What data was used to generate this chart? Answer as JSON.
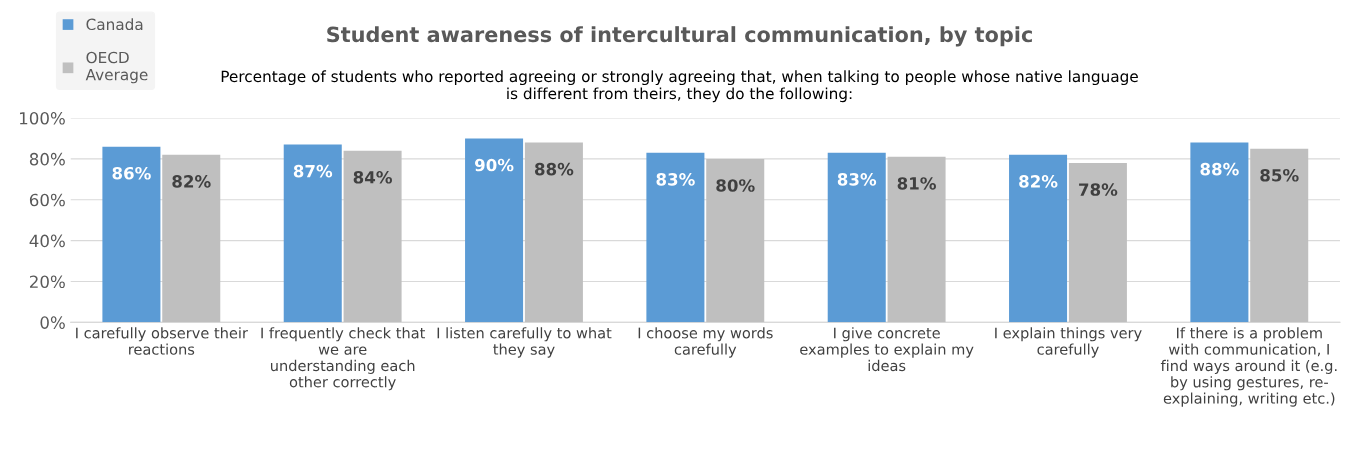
{
  "chart_data": {
    "type": "bar",
    "title": "Student awareness of intercultural communication, by topic",
    "subtitle": "Percentage of students who reported agreeing or strongly agreeing that, when talking to people whose native language\nis different from theirs, they do the following:",
    "categories": [
      "I carefully observe their\nreactions",
      "I frequently check that\nwe are\nunderstanding each\nother correctly",
      "I listen carefully to what\nthey say",
      "I choose my words\ncarefully",
      "I give concrete\nexamples to explain my\nideas",
      "I explain things very\ncarefully",
      "If there is a problem\nwith communication, I\nfind ways around it (e.g.\nby using gestures, re-\nexplaining, writing etc.)"
    ],
    "series": [
      {
        "name": "Canada",
        "color": "#5b9bd5",
        "values": [
          86,
          87,
          90,
          83,
          83,
          82,
          88
        ],
        "value_labels": [
          "86%",
          "87%",
          "90%",
          "83%",
          "83%",
          "82%",
          "88%"
        ]
      },
      {
        "name": "OECD\nAverage",
        "color": "#bfbfbf",
        "values": [
          82,
          84,
          88,
          80,
          81,
          78,
          85
        ],
        "value_labels": [
          "82%",
          "84%",
          "88%",
          "80%",
          "81%",
          "78%",
          "85%"
        ]
      }
    ],
    "ylim": [
      0,
      100
    ],
    "yticks": [
      {
        "value": 0,
        "label": "0%"
      },
      {
        "value": 20,
        "label": "20%"
      },
      {
        "value": 40,
        "label": "40%"
      },
      {
        "value": 60,
        "label": "60%"
      },
      {
        "value": 80,
        "label": "80%"
      },
      {
        "value": 100,
        "label": "100%"
      }
    ],
    "grid": "y",
    "legend": "top left"
  }
}
